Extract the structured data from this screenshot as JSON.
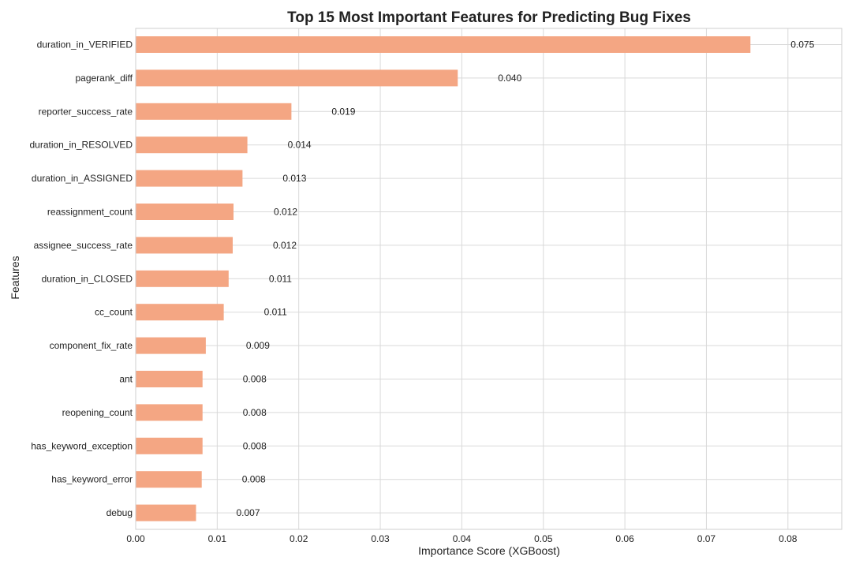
{
  "chart_data": {
    "type": "bar",
    "orientation": "horizontal",
    "title": "Top 15 Most Important Features for Predicting Bug Fixes",
    "xlabel": "Importance Score (XGBoost)",
    "ylabel": "Features",
    "xlim": [
      0,
      0.0866
    ],
    "xticks": [
      0.0,
      0.01,
      0.02,
      0.03,
      0.04,
      0.05,
      0.06,
      0.07,
      0.08
    ],
    "xtick_labels": [
      "0.00",
      "0.01",
      "0.02",
      "0.03",
      "0.04",
      "0.05",
      "0.06",
      "0.07",
      "0.08"
    ],
    "grid": true,
    "bar_color": "#f4a683",
    "categories": [
      "duration_in_VERIFIED",
      "pagerank_diff",
      "reporter_success_rate",
      "duration_in_RESOLVED",
      "duration_in_ASSIGNED",
      "reassignment_count",
      "assignee_success_rate",
      "duration_in_CLOSED",
      "cc_count",
      "component_fix_rate",
      "ant",
      "reopening_count",
      "has_keyword_exception",
      "has_keyword_error",
      "debug"
    ],
    "values": [
      0.0754,
      0.0395,
      0.0191,
      0.0137,
      0.0131,
      0.012,
      0.0119,
      0.0114,
      0.0108,
      0.0086,
      0.0082,
      0.0082,
      0.0082,
      0.0081,
      0.0074
    ],
    "data_labels": [
      "0.075",
      "0.040",
      "0.019",
      "0.014",
      "0.013",
      "0.012",
      "0.012",
      "0.011",
      "0.011",
      "0.009",
      "0.008",
      "0.008",
      "0.008",
      "0.008",
      "0.007"
    ]
  }
}
